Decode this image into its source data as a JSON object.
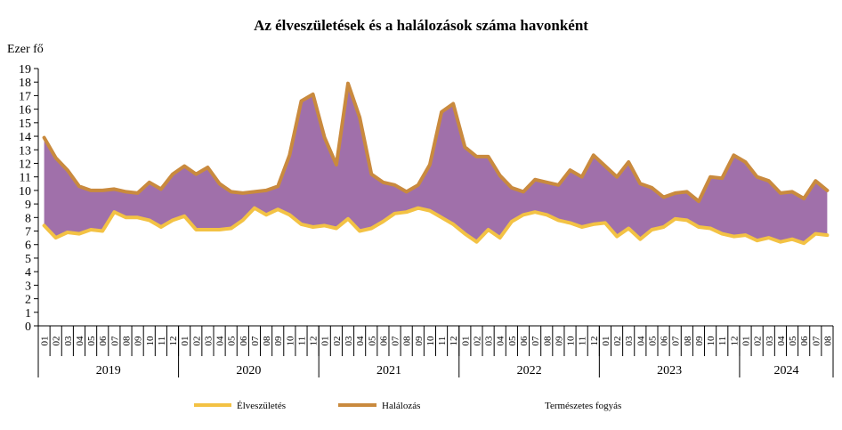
{
  "chart_data": {
    "type": "area",
    "title": "Az élveszületések és a halálozások száma havonként",
    "ylabel": "Ezer fő",
    "xlabel": "",
    "ylim": [
      0,
      19
    ],
    "yticks": [
      0,
      1,
      2,
      3,
      4,
      5,
      6,
      7,
      8,
      9,
      10,
      11,
      12,
      13,
      14,
      15,
      16,
      17,
      18,
      19
    ],
    "grid": false,
    "legend_position": "bottom",
    "years": [
      "2019",
      "2020",
      "2021",
      "2022",
      "2023",
      "2024"
    ],
    "month_labels": [
      "01",
      "02",
      "03",
      "04",
      "05",
      "06",
      "07",
      "08",
      "09",
      "10",
      "11",
      "12"
    ],
    "months_per_year": [
      12,
      12,
      12,
      12,
      12,
      8
    ],
    "series": [
      {
        "name": "Élveszületés",
        "color": "#f3c244",
        "values": [
          7.4,
          6.5,
          6.9,
          6.8,
          7.1,
          7.0,
          8.4,
          8.0,
          8.0,
          7.8,
          7.3,
          7.8,
          8.1,
          7.1,
          7.1,
          7.1,
          7.2,
          7.8,
          8.7,
          8.2,
          8.6,
          8.2,
          7.5,
          7.3,
          7.4,
          7.2,
          7.9,
          7.0,
          7.2,
          7.7,
          8.3,
          8.4,
          8.7,
          8.5,
          8.0,
          7.5,
          6.8,
          6.2,
          7.1,
          6.5,
          7.7,
          8.2,
          8.4,
          8.2,
          7.8,
          7.6,
          7.3,
          7.5,
          7.6,
          6.6,
          7.2,
          6.4,
          7.1,
          7.3,
          7.9,
          7.8,
          7.3,
          7.2,
          6.8,
          6.6,
          6.7,
          6.3,
          6.5,
          6.2,
          6.4,
          6.1,
          6.8,
          6.7
        ]
      },
      {
        "name": "Halálozás",
        "color": "#c98a3e",
        "values": [
          13.9,
          12.4,
          11.5,
          10.3,
          10.0,
          10.0,
          10.1,
          9.9,
          9.8,
          10.6,
          10.1,
          11.2,
          11.8,
          11.2,
          11.7,
          10.5,
          9.9,
          9.8,
          9.9,
          10.0,
          10.3,
          12.6,
          16.6,
          17.1,
          13.9,
          11.9,
          17.9,
          15.4,
          11.2,
          10.6,
          10.4,
          9.9,
          10.4,
          11.9,
          15.8,
          16.4,
          13.2,
          12.5,
          12.5,
          11.1,
          10.2,
          9.9,
          10.8,
          10.6,
          10.4,
          11.5,
          11.0,
          12.6,
          11.8,
          11.0,
          12.1,
          10.5,
          10.2,
          9.5,
          9.8,
          9.9,
          9.2,
          11.0,
          10.9,
          12.6,
          12.1,
          11.0,
          10.7,
          9.8,
          9.9,
          9.4,
          10.7,
          10.0
        ]
      }
    ],
    "fill": {
      "name": "Természetes fogyás",
      "color": "#a070aa"
    }
  }
}
